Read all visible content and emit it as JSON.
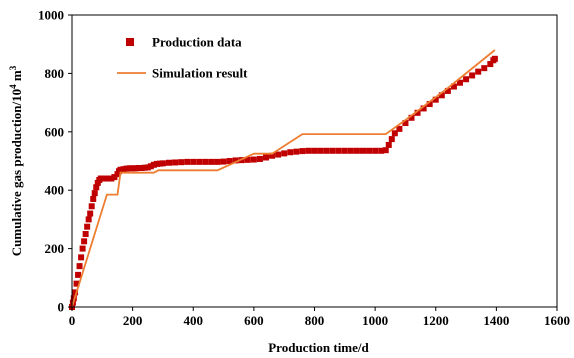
{
  "chart_data": {
    "type": "scatter",
    "xlabel": "Production time/d",
    "ylabel_prefix": "Cumulative gas production/10",
    "ylabel_sup": "4",
    "ylabel_suffix": " m",
    "ylabel_sup2": "3",
    "xlim": [
      0,
      1600
    ],
    "ylim": [
      0,
      1000
    ],
    "x_ticks": [
      "0",
      "200",
      "400",
      "600",
      "800",
      "1000",
      "1200",
      "1400",
      "1600"
    ],
    "y_ticks": [
      "0",
      "200",
      "400",
      "600",
      "800",
      "1000"
    ],
    "grid": false,
    "legend": "top-left",
    "series": [
      {
        "name": "Production data",
        "kind": "markers",
        "color": "#c00000",
        "points": [
          [
            0,
            0
          ],
          [
            3,
            15
          ],
          [
            6,
            30
          ],
          [
            10,
            50
          ],
          [
            15,
            80
          ],
          [
            20,
            110
          ],
          [
            25,
            140
          ],
          [
            30,
            170
          ],
          [
            35,
            200
          ],
          [
            40,
            225
          ],
          [
            45,
            250
          ],
          [
            50,
            275
          ],
          [
            55,
            300
          ],
          [
            60,
            320
          ],
          [
            65,
            345
          ],
          [
            70,
            370
          ],
          [
            75,
            390
          ],
          [
            80,
            410
          ],
          [
            85,
            425
          ],
          [
            90,
            435
          ],
          [
            95,
            440
          ],
          [
            100,
            440
          ],
          [
            110,
            440
          ],
          [
            120,
            440
          ],
          [
            130,
            440
          ],
          [
            140,
            445
          ],
          [
            150,
            455
          ],
          [
            155,
            465
          ],
          [
            160,
            470
          ],
          [
            170,
            472
          ],
          [
            180,
            474
          ],
          [
            190,
            475
          ],
          [
            200,
            475
          ],
          [
            210,
            475
          ],
          [
            220,
            476
          ],
          [
            230,
            476
          ],
          [
            240,
            477
          ],
          [
            250,
            478
          ],
          [
            260,
            482
          ],
          [
            270,
            487
          ],
          [
            280,
            490
          ],
          [
            290,
            491
          ],
          [
            300,
            492
          ],
          [
            320,
            494
          ],
          [
            340,
            495
          ],
          [
            360,
            496
          ],
          [
            380,
            497
          ],
          [
            400,
            497
          ],
          [
            420,
            497
          ],
          [
            440,
            497
          ],
          [
            460,
            497
          ],
          [
            480,
            497
          ],
          [
            500,
            498
          ],
          [
            520,
            500
          ],
          [
            540,
            502
          ],
          [
            560,
            503
          ],
          [
            580,
            504
          ],
          [
            600,
            505
          ],
          [
            620,
            507
          ],
          [
            640,
            512
          ],
          [
            660,
            518
          ],
          [
            680,
            522
          ],
          [
            700,
            526
          ],
          [
            720,
            530
          ],
          [
            740,
            532
          ],
          [
            760,
            534
          ],
          [
            780,
            535
          ],
          [
            800,
            535
          ],
          [
            820,
            535
          ],
          [
            840,
            535
          ],
          [
            860,
            535
          ],
          [
            880,
            535
          ],
          [
            900,
            535
          ],
          [
            920,
            535
          ],
          [
            940,
            535
          ],
          [
            960,
            535
          ],
          [
            980,
            535
          ],
          [
            1000,
            535
          ],
          [
            1020,
            535
          ],
          [
            1035,
            537
          ],
          [
            1045,
            555
          ],
          [
            1055,
            575
          ],
          [
            1065,
            595
          ],
          [
            1080,
            610
          ],
          [
            1100,
            630
          ],
          [
            1120,
            648
          ],
          [
            1140,
            665
          ],
          [
            1160,
            680
          ],
          [
            1180,
            695
          ],
          [
            1200,
            710
          ],
          [
            1220,
            725
          ],
          [
            1240,
            740
          ],
          [
            1260,
            755
          ],
          [
            1280,
            768
          ],
          [
            1300,
            780
          ],
          [
            1320,
            793
          ],
          [
            1340,
            806
          ],
          [
            1360,
            818
          ],
          [
            1380,
            832
          ],
          [
            1390,
            845
          ],
          [
            1395,
            850
          ]
        ]
      },
      {
        "name": "Simulation result",
        "kind": "line",
        "color": "#ed7d31",
        "points": [
          [
            0,
            0
          ],
          [
            115,
            385
          ],
          [
            150,
            385
          ],
          [
            160,
            460
          ],
          [
            270,
            460
          ],
          [
            285,
            468
          ],
          [
            480,
            468
          ],
          [
            600,
            525
          ],
          [
            660,
            525
          ],
          [
            760,
            592
          ],
          [
            1035,
            592
          ],
          [
            1100,
            640
          ],
          [
            1240,
            750
          ],
          [
            1395,
            880
          ]
        ]
      }
    ]
  }
}
